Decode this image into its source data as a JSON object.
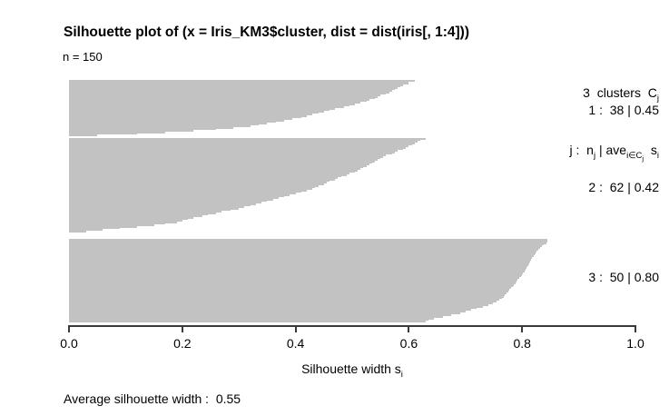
{
  "labels": {
    "title": "Silhouette plot of (x = Iris_KM3$cluster, dist = dist(iris[, 1:4]))",
    "n": "n = 150",
    "legend_line1_main": "3  clusters  C",
    "legend_line1_sub": "j",
    "legend_line2": {
      "p1": "j :  n",
      "s1": "j",
      "p2": " | ave",
      "s2": "i∈C",
      "s2sub": "j",
      "p3": "  s",
      "s3": "i"
    },
    "cluster_rows": [
      "1 :  38 | 0.45",
      "2 :  62 | 0.42",
      "3 :  50 | 0.80"
    ],
    "xaxis_main": "Silhouette width s",
    "xaxis_sub": "i",
    "footer_text": "Average silhouette width :  ",
    "footer_value": "0.55"
  },
  "colors": {
    "bar": "#c2c2c2",
    "axis": "#3a3a3a",
    "text": "#000000",
    "background": "#ffffff"
  },
  "chart_data": {
    "type": "bar",
    "orientation": "horizontal",
    "title": "Silhouette plot of (x = Iris_KM3$cluster, dist = dist(iris[, 1:4]))",
    "n_total": 150,
    "k_clusters": 3,
    "average_silhouette_width": 0.55,
    "xlabel": "Silhouette width si",
    "xlim": [
      0,
      1
    ],
    "x_ticks": [
      0,
      0.2,
      0.4,
      0.6,
      0.8,
      1
    ],
    "x_tick_labels": [
      "0.0",
      "0.2",
      "0.4",
      "0.6",
      "0.8",
      "1.0"
    ],
    "grid": false,
    "legend_position": "right",
    "clusters": [
      {
        "id": 1,
        "n": 38,
        "avg_width": 0.45,
        "values": [
          0.61,
          0.6,
          0.6,
          0.59,
          0.585,
          0.58,
          0.575,
          0.57,
          0.565,
          0.56,
          0.55,
          0.545,
          0.54,
          0.53,
          0.525,
          0.515,
          0.505,
          0.495,
          0.485,
          0.47,
          0.46,
          0.45,
          0.44,
          0.43,
          0.42,
          0.41,
          0.395,
          0.38,
          0.365,
          0.35,
          0.335,
          0.32,
          0.29,
          0.26,
          0.22,
          0.17,
          0.12,
          0.05
        ]
      },
      {
        "id": 2,
        "n": 62,
        "avg_width": 0.42,
        "values": [
          0.63,
          0.62,
          0.615,
          0.61,
          0.605,
          0.6,
          0.595,
          0.59,
          0.58,
          0.575,
          0.57,
          0.56,
          0.555,
          0.55,
          0.545,
          0.54,
          0.535,
          0.53,
          0.525,
          0.52,
          0.515,
          0.51,
          0.505,
          0.495,
          0.49,
          0.48,
          0.475,
          0.47,
          0.46,
          0.455,
          0.45,
          0.44,
          0.435,
          0.43,
          0.42,
          0.41,
          0.4,
          0.39,
          0.38,
          0.37,
          0.36,
          0.35,
          0.34,
          0.33,
          0.32,
          0.31,
          0.3,
          0.285,
          0.27,
          0.26,
          0.245,
          0.235,
          0.22,
          0.21,
          0.2,
          0.19,
          0.17,
          0.15,
          0.12,
          0.09,
          0.06,
          0.03
        ]
      },
      {
        "id": 3,
        "n": 50,
        "avg_width": 0.8,
        "values": [
          0.845,
          0.845,
          0.843,
          0.838,
          0.835,
          0.832,
          0.828,
          0.826,
          0.824,
          0.822,
          0.82,
          0.818,
          0.816,
          0.814,
          0.812,
          0.811,
          0.81,
          0.808,
          0.806,
          0.804,
          0.802,
          0.8,
          0.798,
          0.795,
          0.792,
          0.79,
          0.788,
          0.786,
          0.784,
          0.78,
          0.778,
          0.775,
          0.772,
          0.77,
          0.767,
          0.764,
          0.76,
          0.755,
          0.748,
          0.74,
          0.73,
          0.72,
          0.71,
          0.7,
          0.69,
          0.675,
          0.66,
          0.645,
          0.635,
          0.63
        ]
      }
    ]
  }
}
